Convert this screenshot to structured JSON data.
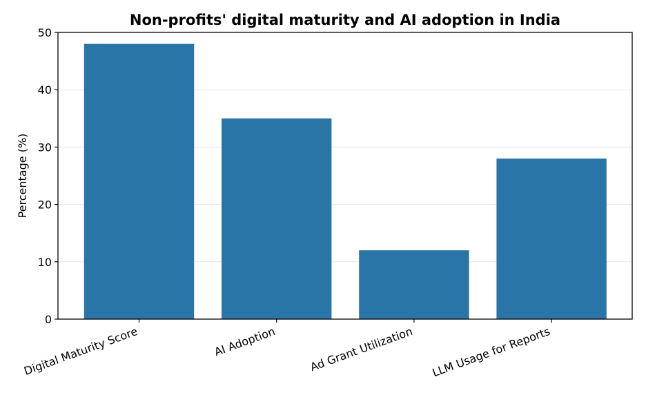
{
  "chart_data": {
    "type": "bar",
    "title": "Non-profits' digital maturity and AI adoption in India",
    "xlabel": "",
    "ylabel": "Percentage (%)",
    "categories": [
      "Digital Maturity Score",
      "AI Adoption",
      "Ad Grant Utilization",
      "LLM Usage for Reports"
    ],
    "values": [
      48,
      35,
      12,
      28
    ],
    "ylim": [
      0,
      50
    ],
    "yticks": [
      0,
      10,
      20,
      30,
      40,
      50
    ],
    "grid": "horizontal",
    "legend": "none",
    "colors": {
      "bar": "#2a75a8",
      "grid": "#e6e6e6",
      "axis": "#000000"
    }
  }
}
